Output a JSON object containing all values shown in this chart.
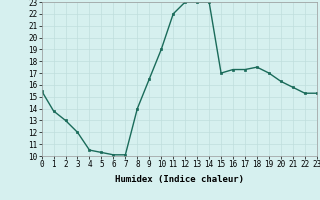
{
  "x": [
    0,
    1,
    2,
    3,
    4,
    5,
    6,
    7,
    8,
    9,
    10,
    11,
    12,
    13,
    14,
    15,
    16,
    17,
    18,
    19,
    20,
    21,
    22,
    23
  ],
  "y": [
    15.5,
    13.8,
    13.0,
    12.0,
    10.5,
    10.3,
    10.1,
    10.1,
    14.0,
    16.5,
    19.0,
    22.0,
    23.0,
    23.0,
    23.0,
    17.0,
    17.3,
    17.3,
    17.5,
    17.0,
    16.3,
    15.8,
    15.3,
    15.3
  ],
  "xlabel": "Humidex (Indice chaleur)",
  "ylim": [
    10,
    23
  ],
  "xlim": [
    0,
    23
  ],
  "yticks": [
    10,
    11,
    12,
    13,
    14,
    15,
    16,
    17,
    18,
    19,
    20,
    21,
    22,
    23
  ],
  "xticks": [
    0,
    1,
    2,
    3,
    4,
    5,
    6,
    7,
    8,
    9,
    10,
    11,
    12,
    13,
    14,
    15,
    16,
    17,
    18,
    19,
    20,
    21,
    22,
    23
  ],
  "line_color": "#1a6b5a",
  "bg_color": "#d6f0ef",
  "grid_color": "#c0dedd",
  "marker": "s",
  "marker_size": 2.0,
  "line_width": 1.0,
  "tick_fontsize": 5.5,
  "xlabel_fontsize": 6.5
}
